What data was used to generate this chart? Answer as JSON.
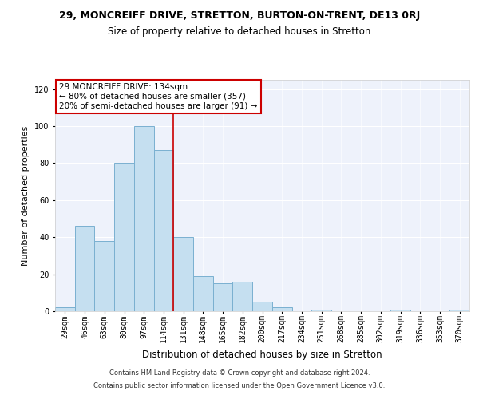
{
  "title_line1": "29, MONCREIFF DRIVE, STRETTON, BURTON-ON-TRENT, DE13 0RJ",
  "title_line2": "Size of property relative to detached houses in Stretton",
  "xlabel": "Distribution of detached houses by size in Stretton",
  "ylabel": "Number of detached properties",
  "footer_line1": "Contains HM Land Registry data © Crown copyright and database right 2024.",
  "footer_line2": "Contains public sector information licensed under the Open Government Licence v3.0.",
  "bar_labels": [
    "29sqm",
    "46sqm",
    "63sqm",
    "80sqm",
    "97sqm",
    "114sqm",
    "131sqm",
    "148sqm",
    "165sqm",
    "182sqm",
    "200sqm",
    "217sqm",
    "234sqm",
    "251sqm",
    "268sqm",
    "285sqm",
    "302sqm",
    "319sqm",
    "336sqm",
    "353sqm",
    "370sqm"
  ],
  "bar_values": [
    2,
    46,
    38,
    80,
    100,
    87,
    40,
    19,
    15,
    16,
    5,
    2,
    0,
    1,
    0,
    0,
    0,
    1,
    0,
    0,
    1
  ],
  "bar_color": "#c5dff0",
  "bar_edge_color": "#7ab0d0",
  "vline_color": "#cc0000",
  "annotation_line1": "29 MONCREIFF DRIVE: 134sqm",
  "annotation_line2": "← 80% of detached houses are smaller (357)",
  "annotation_line3": "20% of semi-detached houses are larger (91) →",
  "annotation_box_facecolor": "#ffffff",
  "annotation_box_edgecolor": "#cc0000",
  "ylim": [
    0,
    125
  ],
  "yticks": [
    0,
    20,
    40,
    60,
    80,
    100,
    120
  ],
  "background_color": "#ffffff",
  "plot_bg_color": "#eef2fb",
  "grid_color": "#ffffff",
  "title1_fontsize": 9.0,
  "title2_fontsize": 8.5,
  "ylabel_fontsize": 8.0,
  "xlabel_fontsize": 8.5,
  "tick_fontsize": 7.0,
  "ann_fontsize": 7.5,
  "footer_fontsize": 6.0
}
